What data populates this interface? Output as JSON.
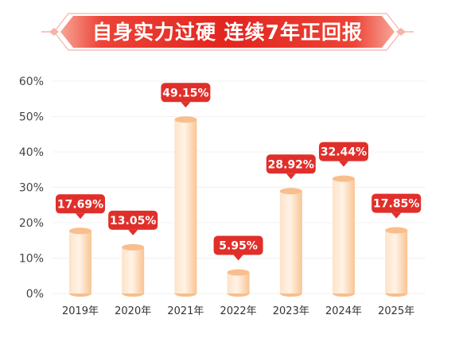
{
  "title": "自身实力过硬 连续7年正回报",
  "colors": {
    "banner": "#e8322c",
    "banner_light": "#f26a5a",
    "label_bubble": "#e02f2a",
    "bar_light": "#fff1df",
    "bar_mid": "#fdd9b4",
    "bar_dark": "#f8be8c",
    "grid": "#f0f0f0"
  },
  "chart_data": {
    "type": "bar",
    "title": "自身实力过硬 连续7年正回报",
    "categories": [
      "2019年",
      "2020年",
      "2021年",
      "2022年",
      "2023年",
      "2024年",
      "2025年"
    ],
    "values": [
      17.69,
      13.05,
      49.15,
      5.95,
      28.92,
      32.44,
      17.85
    ],
    "data_labels": [
      "17.69%",
      "13.05%",
      "49.15%",
      "5.95%",
      "28.92%",
      "32.44%",
      "17.85%"
    ],
    "ylim": [
      0,
      60
    ],
    "yticks": [
      0,
      10,
      20,
      30,
      40,
      50,
      60
    ],
    "ytick_labels": [
      "0%",
      "10%",
      "20%",
      "30%",
      "40%",
      "50%",
      "60%"
    ],
    "xlabel": "",
    "ylabel": "",
    "grid": true,
    "legend": "none"
  }
}
